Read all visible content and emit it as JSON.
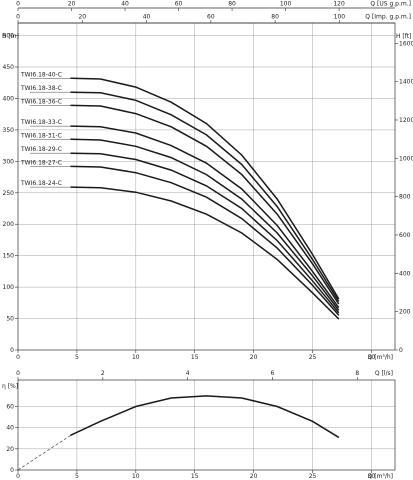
{
  "chart_data": [
    {
      "type": "line",
      "title": "",
      "xlabel": "Q [m³/h]",
      "ylabel": "H [m]",
      "ylabel_right": "H [ft]",
      "xlim": [
        0,
        32
      ],
      "ylim": [
        0,
        520
      ],
      "x_ticks": [
        0,
        5,
        10,
        15,
        20,
        25,
        30
      ],
      "y_ticks": [
        0,
        50,
        100,
        150,
        200,
        250,
        300,
        350,
        400,
        450,
        500
      ],
      "y_right_ticks": [
        0,
        200,
        400,
        600,
        800,
        1000,
        1200,
        1400,
        1600
      ],
      "top_axis_us": {
        "label": "Q [US g.p.m.]",
        "ticks": [
          0,
          20,
          40,
          60,
          80,
          100,
          120
        ]
      },
      "top_axis_imp": {
        "label": "Q [Imp. g.p.m.]",
        "ticks": [
          0,
          20,
          40,
          60,
          80,
          100
        ]
      },
      "grid": true,
      "series": [
        {
          "name": "TWI6.18-40-C",
          "x": [
            4.5,
            7,
            10,
            13,
            16,
            19,
            22,
            25,
            27.2
          ],
          "y": [
            432,
            431,
            418,
            394,
            360,
            310,
            240,
            152,
            82
          ]
        },
        {
          "name": "TWI6.18-38-C",
          "x": [
            4.5,
            7,
            10,
            13,
            16,
            19,
            22,
            25,
            27.2
          ],
          "y": [
            410,
            409,
            397,
            374,
            342,
            295,
            228,
            144,
            78
          ]
        },
        {
          "name": "TWI6.18-36-C",
          "x": [
            4.5,
            7,
            10,
            13,
            16,
            19,
            22,
            25,
            27.2
          ],
          "y": [
            389,
            388,
            376,
            355,
            324,
            279,
            216,
            137,
            74
          ]
        },
        {
          "name": "TWI6.18-33-C",
          "x": [
            4.5,
            7,
            10,
            13,
            16,
            19,
            22,
            25,
            27.2
          ],
          "y": [
            356,
            355,
            345,
            325,
            297,
            256,
            198,
            125,
            68
          ]
        },
        {
          "name": "TWI6.18-31-C",
          "x": [
            4.5,
            7,
            10,
            13,
            16,
            19,
            22,
            25,
            27.2
          ],
          "y": [
            335,
            334,
            324,
            306,
            279,
            240,
            186,
            118,
            64
          ]
        },
        {
          "name": "TWI6.18-29-C",
          "x": [
            4.5,
            7,
            10,
            13,
            16,
            19,
            22,
            25,
            27.2
          ],
          "y": [
            313,
            312,
            303,
            286,
            261,
            225,
            174,
            110,
            60
          ]
        },
        {
          "name": "TWI6.18-27-C",
          "x": [
            4.5,
            7,
            10,
            13,
            16,
            19,
            22,
            25,
            27.2
          ],
          "y": [
            292,
            291,
            282,
            266,
            243,
            209,
            162,
            103,
            56
          ]
        },
        {
          "name": "TWI6.18-24-C",
          "x": [
            4.5,
            7,
            10,
            13,
            16,
            19,
            22,
            25,
            27.2
          ],
          "y": [
            259,
            258,
            251,
            237,
            216,
            186,
            144,
            91,
            50
          ]
        }
      ]
    },
    {
      "type": "line",
      "title": "",
      "xlabel": "Q [m³/h]",
      "ylabel": "η [%]",
      "xlim": [
        0,
        32
      ],
      "ylim": [
        0,
        85
      ],
      "x_ticks": [
        0,
        5,
        10,
        15,
        20,
        25,
        30
      ],
      "y_ticks": [
        0,
        20,
        40,
        60
      ],
      "top_axis_ls": {
        "label": "Q [l/s]",
        "ticks": [
          0,
          2,
          4,
          6,
          8
        ]
      },
      "grid": true,
      "series": [
        {
          "name": "",
          "x": [
            4.5,
            7,
            10,
            13,
            16,
            19,
            22,
            25,
            27.2
          ],
          "y": [
            33,
            46,
            60,
            68,
            70,
            68,
            60,
            46,
            31
          ]
        },
        {
          "name": "",
          "style": "dashed",
          "x": [
            0,
            4.5
          ],
          "y": [
            0,
            33
          ]
        }
      ]
    }
  ]
}
